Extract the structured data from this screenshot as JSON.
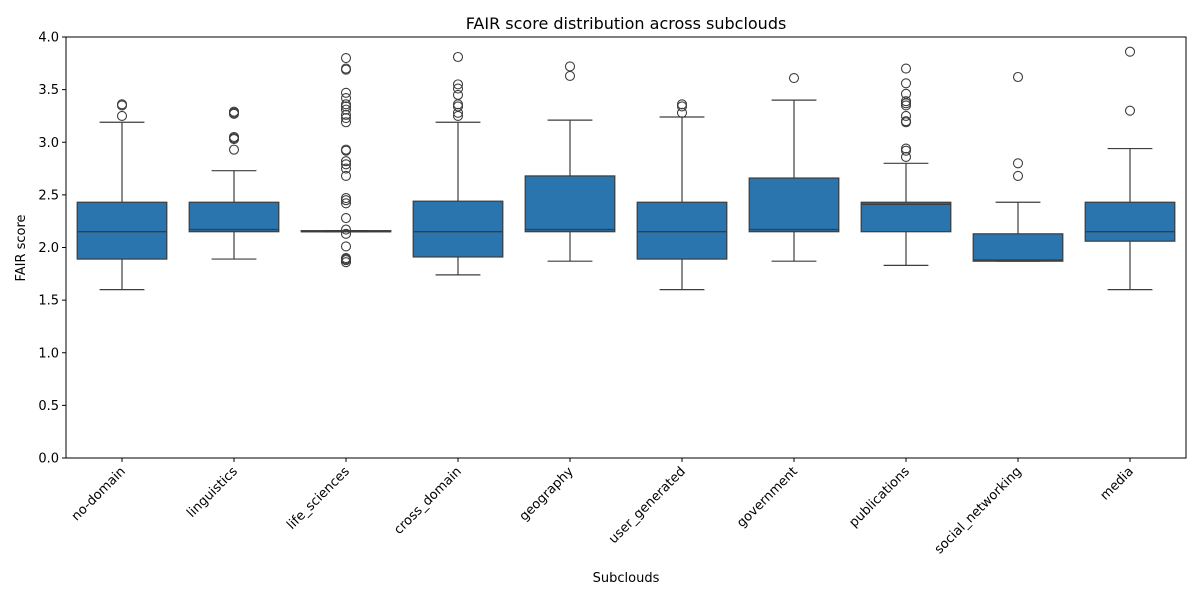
{
  "chart_data": {
    "type": "box",
    "title": "FAIR score distribution across subclouds",
    "xlabel": "Subclouds",
    "ylabel": "FAIR score",
    "ylim": [
      0,
      4
    ],
    "yticks": [
      "0.0",
      "0.5",
      "1.0",
      "1.5",
      "2.0",
      "2.5",
      "3.0",
      "3.5",
      "4.0"
    ],
    "grid": false,
    "color": "#2a75ad",
    "categories": [
      "no-domain",
      "linguistics",
      "life_sciences",
      "cross_domain",
      "geography",
      "user_generated",
      "government",
      "publications",
      "social_networking",
      "media"
    ],
    "boxes": [
      {
        "whisker_low": 1.6,
        "q1": 1.89,
        "median": 2.15,
        "q3": 2.43,
        "whisker_high": 3.19,
        "fliers": [
          3.25,
          3.35,
          3.36
        ]
      },
      {
        "whisker_low": 1.89,
        "q1": 2.15,
        "median": 2.17,
        "q3": 2.43,
        "whisker_high": 2.73,
        "fliers": [
          2.93,
          3.03,
          3.04,
          3.05,
          3.27,
          3.28,
          3.29
        ]
      },
      {
        "whisker_low": 2.15,
        "q1": 2.15,
        "median": 2.15,
        "q3": 2.16,
        "whisker_high": 2.16,
        "fliers": [
          1.86,
          1.88,
          1.89,
          1.9,
          2.01,
          2.13,
          2.17,
          2.28,
          2.42,
          2.45,
          2.47,
          2.68,
          2.75,
          2.79,
          2.82,
          2.92,
          2.93,
          3.19,
          3.23,
          3.26,
          3.31,
          3.34,
          3.36,
          3.42,
          3.47,
          3.69,
          3.7,
          3.8
        ]
      },
      {
        "whisker_low": 1.74,
        "q1": 1.91,
        "median": 2.15,
        "q3": 2.44,
        "whisker_high": 3.19,
        "fliers": [
          3.25,
          3.28,
          3.34,
          3.36,
          3.45,
          3.51,
          3.55,
          3.81
        ]
      },
      {
        "whisker_low": 1.87,
        "q1": 2.15,
        "median": 2.17,
        "q3": 2.68,
        "whisker_high": 3.21,
        "fliers": [
          3.63,
          3.72
        ]
      },
      {
        "whisker_low": 1.6,
        "q1": 1.89,
        "median": 2.15,
        "q3": 2.43,
        "whisker_high": 3.24,
        "fliers": [
          3.28,
          3.34,
          3.36
        ]
      },
      {
        "whisker_low": 1.87,
        "q1": 2.15,
        "median": 2.17,
        "q3": 2.66,
        "whisker_high": 3.4,
        "fliers": [
          3.61
        ]
      },
      {
        "whisker_low": 1.83,
        "q1": 2.15,
        "median": 2.41,
        "q3": 2.43,
        "whisker_high": 2.8,
        "fliers": [
          2.86,
          2.92,
          2.94,
          3.19,
          3.2,
          3.25,
          3.35,
          3.37,
          3.39,
          3.46,
          3.56,
          3.7
        ]
      },
      {
        "whisker_low": 1.87,
        "q1": 1.87,
        "median": 1.88,
        "q3": 2.13,
        "whisker_high": 2.43,
        "fliers": [
          2.68,
          2.8,
          3.62
        ]
      },
      {
        "whisker_low": 1.6,
        "q1": 2.06,
        "median": 2.15,
        "q3": 2.43,
        "whisker_high": 2.94,
        "fliers": [
          3.3,
          3.86
        ]
      }
    ]
  }
}
